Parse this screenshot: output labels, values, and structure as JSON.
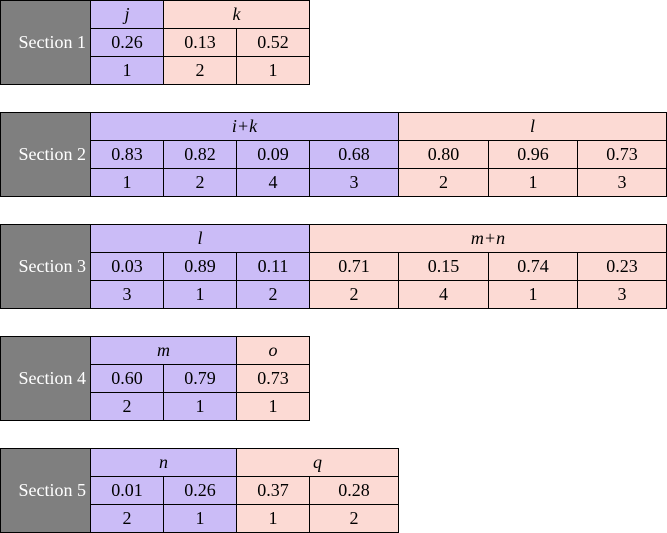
{
  "sections": [
    {
      "label": "Section 1",
      "groups": [
        {
          "header": "j",
          "values": [
            "0.26"
          ],
          "ranks": [
            1
          ]
        },
        {
          "header": "k",
          "values": [
            "0.13",
            "0.52"
          ],
          "ranks": [
            2,
            1
          ]
        }
      ]
    },
    {
      "label": "Section 2",
      "groups": [
        {
          "header": "i+k",
          "values": [
            "0.83",
            "0.82",
            "0.09",
            "0.68"
          ],
          "ranks": [
            1,
            2,
            4,
            3
          ]
        },
        {
          "header": "l",
          "values": [
            "0.80",
            "0.96",
            "0.73"
          ],
          "ranks": [
            2,
            1,
            3
          ]
        }
      ]
    },
    {
      "label": "Section 3",
      "groups": [
        {
          "header": "l",
          "values": [
            "0.03",
            "0.89",
            "0.11"
          ],
          "ranks": [
            3,
            1,
            2
          ]
        },
        {
          "header": "m+n",
          "values": [
            "0.71",
            "0.15",
            "0.74",
            "0.23"
          ],
          "ranks": [
            2,
            4,
            1,
            3
          ]
        }
      ]
    },
    {
      "label": "Section 4",
      "groups": [
        {
          "header": "m",
          "values": [
            "0.60",
            "0.79"
          ],
          "ranks": [
            2,
            1
          ]
        },
        {
          "header": "o",
          "values": [
            "0.73"
          ],
          "ranks": [
            1
          ]
        }
      ]
    },
    {
      "label": "Section 5",
      "groups": [
        {
          "header": "n",
          "values": [
            "0.01",
            "0.26"
          ],
          "ranks": [
            2,
            1
          ]
        },
        {
          "header": "q",
          "values": [
            "0.37",
            "0.28"
          ],
          "ranks": [
            1,
            2
          ]
        }
      ]
    }
  ]
}
